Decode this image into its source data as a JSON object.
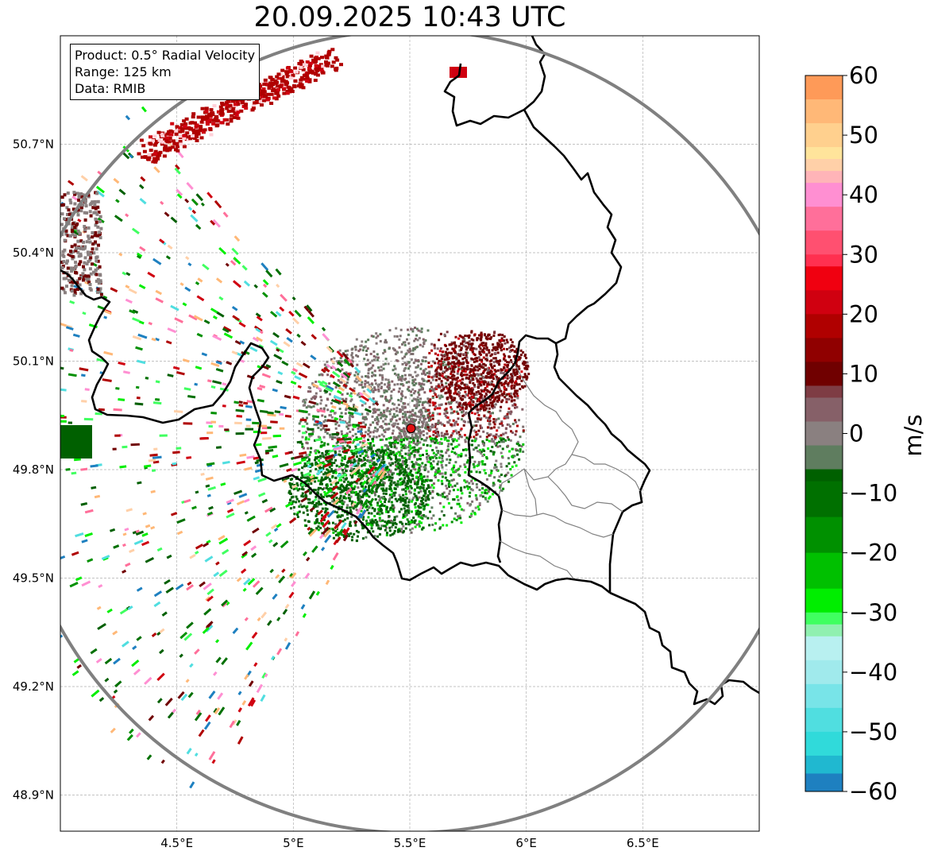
{
  "title": "20.09.2025 10:43 UTC",
  "info_box": {
    "product": "Product: 0.5° Radial Velocity",
    "range": "Range: 125 km",
    "data": "Data: RMIB"
  },
  "map": {
    "lon_range": [
      4.0,
      7.0
    ],
    "lat_range": [
      48.8,
      51.0
    ],
    "radar_site": {
      "lon": 5.505,
      "lat": 49.914
    },
    "lon_ticks": [
      {
        "value": 4.5,
        "label": "4.5°E"
      },
      {
        "value": 5.0,
        "label": "5°E"
      },
      {
        "value": 5.5,
        "label": "5.5°E"
      },
      {
        "value": 6.0,
        "label": "6°E"
      },
      {
        "value": 6.5,
        "label": "6.5°E"
      }
    ],
    "lat_ticks": [
      {
        "value": 50.7,
        "label": "50.7°N"
      },
      {
        "value": 50.4,
        "label": "50.4°N"
      },
      {
        "value": 50.1,
        "label": "50.1°N"
      },
      {
        "value": 49.8,
        "label": "49.8°N"
      },
      {
        "value": 49.5,
        "label": "49.5°N"
      },
      {
        "value": 49.2,
        "label": "49.2°N"
      },
      {
        "value": 48.9,
        "label": "48.9°N"
      }
    ]
  },
  "colorbar": {
    "unit": "m/s",
    "min": -60,
    "max": 60,
    "ticks": [
      {
        "value": 60,
        "label": "60"
      },
      {
        "value": 50,
        "label": "50"
      },
      {
        "value": 40,
        "label": "40"
      },
      {
        "value": 30,
        "label": "30"
      },
      {
        "value": 20,
        "label": "20"
      },
      {
        "value": 10,
        "label": "10"
      },
      {
        "value": 0,
        "label": "0"
      },
      {
        "value": -10,
        "label": "−10"
      },
      {
        "value": -20,
        "label": "−20"
      },
      {
        "value": -30,
        "label": "−30"
      },
      {
        "value": -40,
        "label": "−40"
      },
      {
        "value": -50,
        "label": "−50"
      },
      {
        "value": -60,
        "label": "−60"
      }
    ],
    "bands": [
      {
        "from": 56,
        "to": 60,
        "color": "#fe9a58"
      },
      {
        "from": 52,
        "to": 56,
        "color": "#ffb877"
      },
      {
        "from": 48,
        "to": 52,
        "color": "#ffd08e"
      },
      {
        "from": 46,
        "to": 48,
        "color": "#ffe49b"
      },
      {
        "from": 44,
        "to": 46,
        "color": "#ffd0a8"
      },
      {
        "from": 42,
        "to": 44,
        "color": "#ffb4b8"
      },
      {
        "from": 38,
        "to": 42,
        "color": "#ff8fd2"
      },
      {
        "from": 34,
        "to": 38,
        "color": "#ff6f9a"
      },
      {
        "from": 30,
        "to": 34,
        "color": "#ff5070"
      },
      {
        "from": 28,
        "to": 30,
        "color": "#ff3050"
      },
      {
        "from": 24,
        "to": 28,
        "color": "#f00010"
      },
      {
        "from": 20,
        "to": 24,
        "color": "#d00010"
      },
      {
        "from": 16,
        "to": 20,
        "color": "#b00000"
      },
      {
        "from": 12,
        "to": 16,
        "color": "#900000"
      },
      {
        "from": 8,
        "to": 12,
        "color": "#700000"
      },
      {
        "from": 6,
        "to": 8,
        "color": "#7e3c44"
      },
      {
        "from": 2,
        "to": 6,
        "color": "#866068"
      },
      {
        "from": -2,
        "to": 2,
        "color": "#8a8080"
      },
      {
        "from": -6,
        "to": -2,
        "color": "#5f7d5f"
      },
      {
        "from": -8,
        "to": -6,
        "color": "#006000"
      },
      {
        "from": -14,
        "to": -8,
        "color": "#007000"
      },
      {
        "from": -20,
        "to": -14,
        "color": "#009000"
      },
      {
        "from": -26,
        "to": -20,
        "color": "#00c000"
      },
      {
        "from": -30,
        "to": -26,
        "color": "#00ee00"
      },
      {
        "from": -32,
        "to": -30,
        "color": "#40ff60"
      },
      {
        "from": -34,
        "to": -32,
        "color": "#90f0b0"
      },
      {
        "from": -38,
        "to": -34,
        "color": "#b8f0f0"
      },
      {
        "from": -42,
        "to": -38,
        "color": "#a0eaec"
      },
      {
        "from": -46,
        "to": -42,
        "color": "#78e4e8"
      },
      {
        "from": -50,
        "to": -46,
        "color": "#50dee0"
      },
      {
        "from": -54,
        "to": -50,
        "color": "#30dada"
      },
      {
        "from": -57,
        "to": -54,
        "color": "#20b8d0"
      },
      {
        "from": -60,
        "to": -57,
        "color": "#1e80c0"
      }
    ]
  },
  "colors": {
    "range_ring": "#808080",
    "border": "#000000",
    "admin_border": "#808080",
    "radar_marker": "#e01010"
  }
}
